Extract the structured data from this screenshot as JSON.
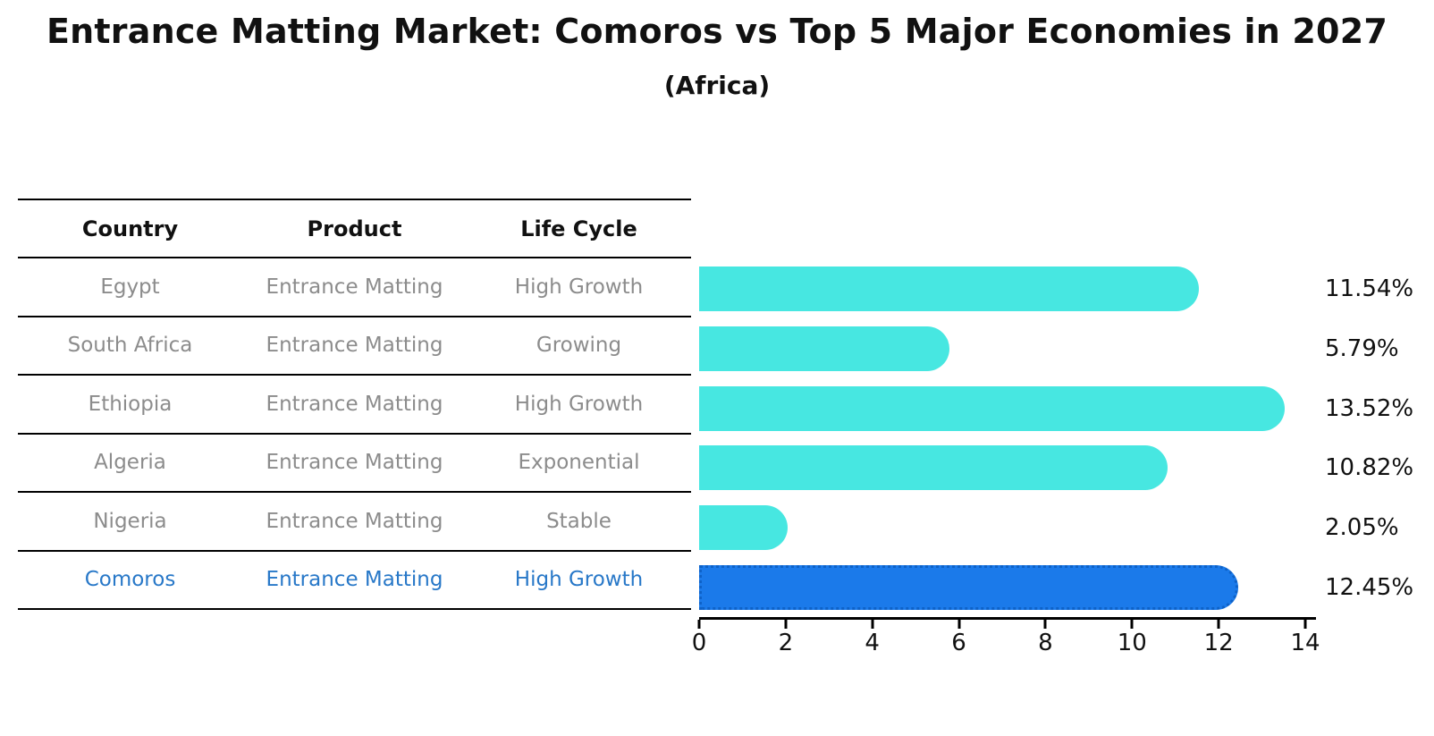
{
  "title": "Entrance Matting Market: Comoros vs Top 5 Major Economies in 2027",
  "subtitle": "(Africa)",
  "table": {
    "headers": [
      "Country",
      "Product",
      "Life Cycle"
    ],
    "rows": [
      {
        "country": "Egypt",
        "product": "Entrance Matting",
        "life_cycle": "High Growth",
        "highlight": false
      },
      {
        "country": "South Africa",
        "product": "Entrance Matting",
        "life_cycle": "Growing",
        "highlight": false
      },
      {
        "country": "Ethiopia",
        "product": "Entrance Matting",
        "life_cycle": "High Growth",
        "highlight": false
      },
      {
        "country": "Algeria",
        "product": "Entrance Matting",
        "life_cycle": "Exponential",
        "highlight": false
      },
      {
        "country": "Nigeria",
        "product": "Entrance Matting",
        "life_cycle": "Stable",
        "highlight": false
      },
      {
        "country": "Comoros",
        "product": "Entrance Matting",
        "life_cycle": "High Growth",
        "highlight": true
      }
    ]
  },
  "chart_data": {
    "type": "bar",
    "orientation": "horizontal",
    "title": "Entrance Matting Market: Comoros vs Top 5 Major Economies in 2027",
    "subtitle": "(Africa)",
    "categories": [
      "Egypt",
      "South Africa",
      "Ethiopia",
      "Algeria",
      "Nigeria",
      "Comoros"
    ],
    "values": [
      11.54,
      5.79,
      13.52,
      10.82,
      2.05,
      12.45
    ],
    "value_labels": [
      "11.54%",
      "5.79%",
      "13.52%",
      "10.82%",
      "2.05%",
      "12.45%"
    ],
    "xlim": [
      0,
      14
    ],
    "xticks": [
      "0",
      "2",
      "4",
      "6",
      "8",
      "10",
      "12",
      "14"
    ],
    "highlight_index": 5,
    "grid": false,
    "legend": false
  },
  "colors": {
    "bar": "#47E7E1",
    "highlight_bar": "#1B7AEA",
    "highlight_bar_edge": "#0E62C8",
    "highlight_text": "#2878C8",
    "table_text": "#8C8C8C",
    "axis": "#000000",
    "label_text": "#111111"
  }
}
